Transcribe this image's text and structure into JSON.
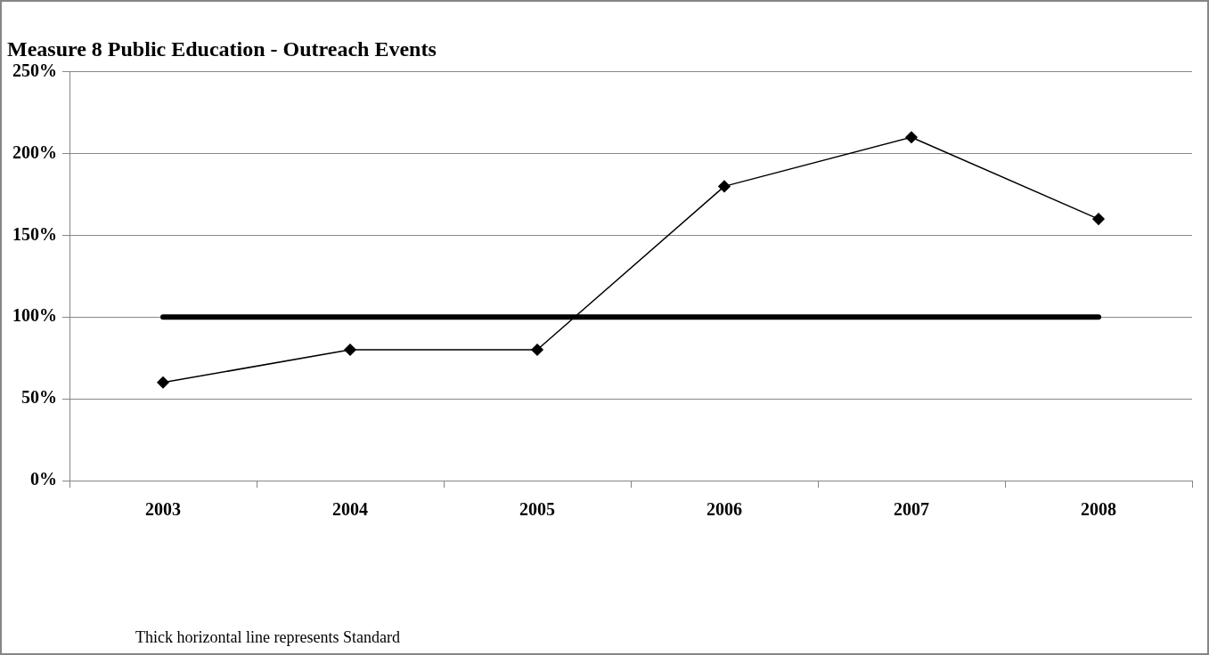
{
  "chart_data": {
    "type": "line",
    "title": "Measure 8 Public Education - Outreach Events",
    "categories": [
      "2003",
      "2004",
      "2005",
      "2006",
      "2007",
      "2008"
    ],
    "series": [
      {
        "color": "#000000",
        "values": [
          60,
          80,
          80,
          180,
          210,
          160
        ],
        "marker": "diamond"
      },
      {
        "color": "#000000",
        "values": [
          100,
          100,
          100,
          100,
          100,
          100
        ],
        "marker": "none"
      }
    ],
    "ylim": [
      0,
      250
    ],
    "yticks": [
      {
        "value": 0,
        "label": "0%"
      },
      {
        "value": 50,
        "label": "50%"
      },
      {
        "value": 100,
        "label": "100%"
      },
      {
        "value": 150,
        "label": "150%"
      },
      {
        "value": 200,
        "label": "200%"
      },
      {
        "value": 250,
        "label": "250%"
      }
    ],
    "grid": "y",
    "legend": false,
    "annotations": [
      "Thick horizontal line represents Standard"
    ]
  }
}
